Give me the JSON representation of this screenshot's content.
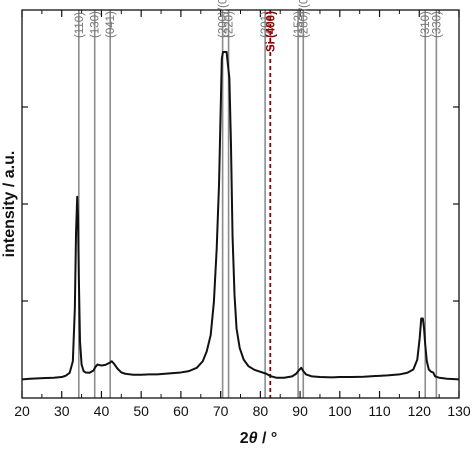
{
  "chart_data": {
    "type": "line",
    "title": "",
    "xlabel_main": "2",
    "xlabel_theta": "θ",
    "xlabel_unit": " / °",
    "ylabel": "intensity / a.u.",
    "xlim": [
      20,
      130
    ],
    "ylim": [
      0,
      100
    ],
    "xticks": [
      20,
      30,
      40,
      50,
      60,
      70,
      80,
      90,
      100,
      110,
      120,
      130
    ],
    "yticks": [
      25,
      50,
      75
    ],
    "ytick_labels_shown": false,
    "grid": false,
    "legend": "none",
    "line_color": "#111111",
    "reference_color": "#8c8c8c",
    "si_color": "#8b0000",
    "series": [
      {
        "x": [
          20,
          22,
          24,
          26,
          28,
          30,
          31,
          32,
          32.8,
          33.3,
          33.6,
          33.9,
          34.1,
          34.3,
          34.6,
          35.0,
          35.5,
          36.0,
          37.0,
          38.0,
          38.5,
          39.0,
          40.0,
          41.0,
          42.0,
          42.6,
          43.2,
          44.0,
          45.0,
          46.0,
          48.0,
          50.0,
          52.0,
          54.0,
          56.0,
          58.0,
          60.0,
          62.0,
          64.0,
          65.5,
          66.5,
          67.5,
          68.3,
          69.0,
          69.6,
          70.0,
          70.3,
          70.6,
          71.5,
          72.2,
          72.6,
          73.0,
          73.5,
          74.0,
          74.8,
          75.8,
          77.0,
          78.5,
          80.0,
          81.5,
          82.5,
          84.0,
          86.0,
          88.0,
          89.0,
          89.8,
          90.3,
          90.8,
          91.5,
          93.0,
          95.0,
          98.0,
          100.0,
          103.0,
          106.0,
          109.0,
          112.0,
          115.0,
          117.0,
          118.5,
          119.5,
          120.1,
          120.5,
          120.9,
          121.2,
          121.5,
          121.9,
          122.4,
          123.0,
          123.5,
          124.0,
          125.0,
          127.0,
          130.0
        ],
        "y": [
          0.5,
          0.7,
          0.8,
          0.9,
          1.0,
          1.2,
          1.6,
          2.5,
          6,
          22,
          45,
          56,
          50,
          32,
          12,
          5,
          3,
          2.6,
          2.5,
          3.2,
          4.3,
          5.0,
          4.7,
          4.9,
          5.5,
          6.0,
          5.2,
          3.8,
          2.6,
          2.2,
          1.9,
          1.9,
          2.0,
          2.0,
          2.2,
          2.4,
          2.6,
          3.0,
          4.0,
          6.0,
          9.0,
          14,
          24,
          40,
          60,
          82,
          98,
          100,
          100,
          92,
          72,
          44,
          26,
          16,
          10,
          6.5,
          4.5,
          3.4,
          2.8,
          2.2,
          1.5,
          1.0,
          1.0,
          1.4,
          2.2,
          3.4,
          4.0,
          3.0,
          2.0,
          1.4,
          1.2,
          1.1,
          1.2,
          1.2,
          1.3,
          1.5,
          1.7,
          2.0,
          2.5,
          3.5,
          6.5,
          13,
          19,
          19,
          16,
          11,
          6,
          3.5,
          2.8,
          2.6,
          1.4,
          1.0,
          0.7,
          0.5
        ]
      }
    ],
    "reference_lines": [
      {
        "label": "(110)",
        "x": 34.3
      },
      {
        "label": "(130)",
        "x": 38.3
      },
      {
        "label": "(041)",
        "x": 42.2
      },
      {
        "label": "(200)/(002)",
        "x": 70.5
      },
      {
        "label": "(220)",
        "x": 72.0
      },
      {
        "label": "(201)",
        "x": 81.2
      },
      {
        "label": "(152)",
        "x": 89.5
      },
      {
        "label": "(280)/(082)",
        "x": 90.8
      },
      {
        "label": "(310)",
        "x": 121.5
      },
      {
        "label": "(330)",
        "x": 124.3
      }
    ],
    "si_reference": {
      "label": "Si (400)",
      "x": 82.5
    }
  }
}
